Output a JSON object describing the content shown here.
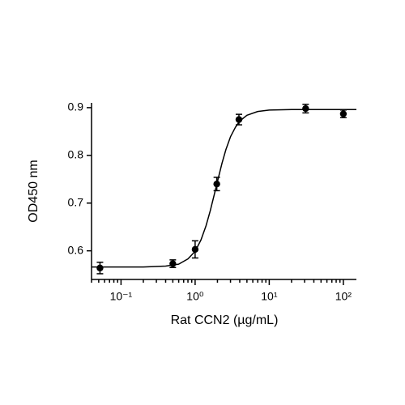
{
  "chart_data": {
    "type": "scatter",
    "x_label": "Rat CCN2 (µg/mL)",
    "y_label": "OD450 nm",
    "xscale": "log",
    "color": "#000000",
    "points": {
      "x": [
        0.052,
        0.5,
        1,
        1.96,
        3.9,
        31,
        100
      ],
      "values": [
        0.564,
        0.573,
        0.603,
        0.74,
        0.875,
        0.898,
        0.887
      ],
      "errors": [
        0.012,
        0.008,
        0.018,
        0.014,
        0.011,
        0.009,
        0.008
      ]
    },
    "curve": {
      "x": [
        0.04,
        0.1,
        0.2,
        0.4,
        0.6,
        0.8,
        1,
        1.2,
        1.4,
        1.6,
        1.8,
        2,
        2.3,
        2.6,
        3,
        3.5,
        4,
        5,
        7,
        10,
        20,
        50,
        150
      ],
      "values": [
        0.566,
        0.566,
        0.566,
        0.568,
        0.572,
        0.583,
        0.599,
        0.623,
        0.652,
        0.684,
        0.716,
        0.745,
        0.783,
        0.812,
        0.839,
        0.859,
        0.872,
        0.884,
        0.892,
        0.895,
        0.896,
        0.896,
        0.896
      ]
    },
    "xlim": [
      0.04,
      150
    ],
    "ylim": [
      0.54,
      0.91
    ],
    "xticks": [
      {
        "value": 0.1,
        "label": "10⁻¹"
      },
      {
        "value": 1,
        "label": "10⁰"
      },
      {
        "value": 10,
        "label": "10¹"
      },
      {
        "value": 100,
        "label": "10²"
      }
    ],
    "xminorticks": [
      0.04,
      0.05,
      0.06,
      0.07,
      0.08,
      0.09,
      0.2,
      0.3,
      0.4,
      0.5,
      0.6,
      0.7,
      0.8,
      0.9,
      2,
      3,
      4,
      5,
      6,
      7,
      8,
      9,
      20,
      30,
      40,
      50,
      60,
      70,
      80,
      90
    ],
    "yticks": [
      0.6,
      0.7,
      0.8,
      0.9
    ]
  }
}
